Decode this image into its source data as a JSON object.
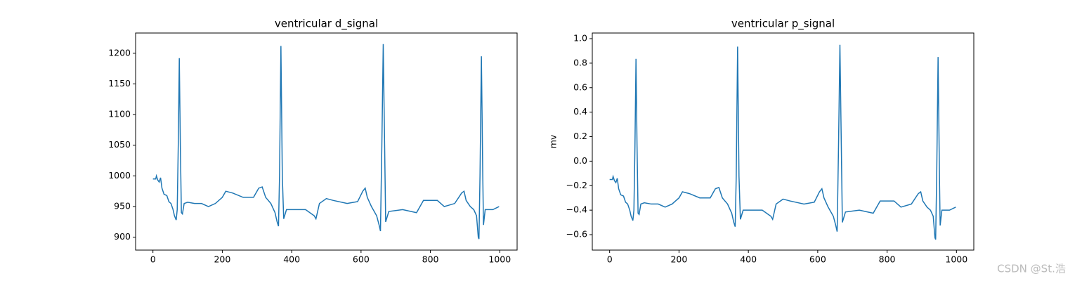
{
  "chart_data": [
    {
      "type": "line",
      "title": "ventricular d_signal",
      "color": "#1f77b4",
      "x": [
        0,
        8,
        10,
        14,
        18,
        22,
        26,
        32,
        40,
        46,
        52,
        58,
        62,
        67,
        70,
        73,
        76,
        79,
        82,
        85,
        90,
        100,
        120,
        140,
        160,
        180,
        200,
        210,
        230,
        260,
        290,
        305,
        315,
        325,
        340,
        352,
        358,
        362,
        365,
        369,
        373,
        377,
        385,
        420,
        440,
        465,
        470,
        480,
        500,
        520,
        560,
        590,
        605,
        612,
        618,
        630,
        645,
        652,
        656,
        660,
        664,
        668,
        671,
        680,
        720,
        760,
        780,
        820,
        840,
        870,
        890,
        897,
        903,
        915,
        925,
        933,
        938,
        940,
        943,
        947,
        951,
        953,
        958,
        980,
        998
      ],
      "values": [
        995,
        995,
        1000,
        993,
        990,
        997,
        980,
        970,
        968,
        958,
        955,
        945,
        935,
        928,
        945,
        1050,
        1192,
        1050,
        940,
        938,
        955,
        957,
        955,
        955,
        950,
        955,
        965,
        975,
        972,
        965,
        965,
        980,
        982,
        965,
        955,
        940,
        925,
        918,
        1000,
        1212,
        1000,
        930,
        945,
        945,
        945,
        935,
        930,
        955,
        963,
        960,
        955,
        958,
        975,
        980,
        965,
        950,
        935,
        920,
        910,
        1050,
        1215,
        1050,
        925,
        942,
        945,
        940,
        960,
        960,
        950,
        955,
        972,
        975,
        960,
        950,
        945,
        935,
        900,
        897,
        1000,
        1195,
        1000,
        920,
        945,
        945,
        950
      ],
      "xlim": [
        -50,
        1050
      ],
      "ylim": [
        879,
        1233
      ],
      "xticks": [
        0,
        200,
        400,
        600,
        800,
        1000
      ],
      "yticks": [
        900,
        950,
        1000,
        1050,
        1100,
        1150,
        1200
      ]
    },
    {
      "type": "line",
      "title": "ventricular p_signal",
      "ylabel": "mv",
      "color": "#1f77b4",
      "x": [
        0,
        8,
        10,
        14,
        18,
        22,
        26,
        32,
        40,
        46,
        52,
        58,
        62,
        67,
        70,
        73,
        76,
        79,
        82,
        85,
        90,
        100,
        120,
        140,
        160,
        180,
        200,
        210,
        230,
        260,
        290,
        305,
        315,
        325,
        340,
        352,
        358,
        362,
        365,
        369,
        373,
        377,
        385,
        420,
        440,
        465,
        470,
        480,
        500,
        520,
        560,
        590,
        605,
        612,
        618,
        630,
        645,
        652,
        656,
        660,
        664,
        668,
        671,
        680,
        720,
        760,
        780,
        820,
        840,
        870,
        890,
        897,
        903,
        915,
        925,
        933,
        938,
        940,
        943,
        947,
        951,
        953,
        958,
        980,
        998
      ],
      "values": [
        -0.15,
        -0.15,
        -0.125,
        -0.16,
        -0.175,
        -0.14,
        -0.225,
        -0.275,
        -0.285,
        -0.335,
        -0.35,
        -0.4,
        -0.45,
        -0.485,
        -0.4,
        0.125,
        0.835,
        0.125,
        -0.425,
        -0.435,
        -0.35,
        -0.34,
        -0.35,
        -0.35,
        -0.375,
        -0.35,
        -0.3,
        -0.25,
        -0.265,
        -0.3,
        -0.3,
        -0.225,
        -0.215,
        -0.3,
        -0.35,
        -0.425,
        -0.5,
        -0.535,
        -0.125,
        0.935,
        -0.125,
        -0.475,
        -0.4,
        -0.4,
        -0.4,
        -0.45,
        -0.475,
        -0.35,
        -0.31,
        -0.325,
        -0.35,
        -0.335,
        -0.25,
        -0.225,
        -0.3,
        -0.375,
        -0.45,
        -0.525,
        -0.575,
        0.125,
        0.95,
        0.125,
        -0.5,
        -0.415,
        -0.4,
        -0.425,
        -0.325,
        -0.325,
        -0.375,
        -0.35,
        -0.265,
        -0.25,
        -0.325,
        -0.375,
        -0.4,
        -0.45,
        -0.625,
        -0.64,
        -0.125,
        0.85,
        -0.125,
        -0.525,
        -0.4,
        -0.4,
        -0.375
      ],
      "xlim": [
        -50,
        1050
      ],
      "ylim": [
        -0.726,
        1.046
      ],
      "xticks": [
        0,
        200,
        400,
        600,
        800,
        1000
      ],
      "yticks": [
        {
          "value": -0.6,
          "label": "−0.6"
        },
        {
          "value": -0.4,
          "label": "−0.4"
        },
        {
          "value": -0.2,
          "label": "−0.2"
        },
        {
          "value": 0,
          "label": "0.0"
        },
        0.2,
        0.4,
        0.6,
        0.8,
        {
          "value": 1,
          "label": "1.0"
        }
      ]
    }
  ],
  "watermark": "CSDN @St.浩"
}
